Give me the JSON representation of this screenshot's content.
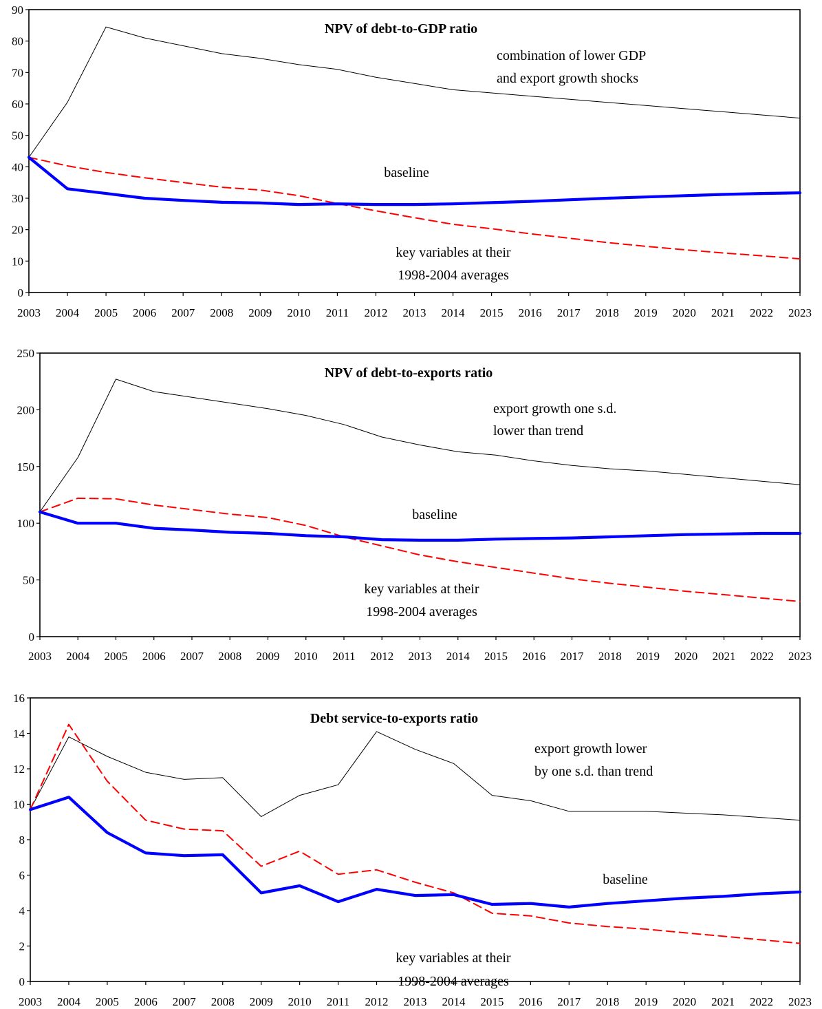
{
  "chart_data": [
    {
      "type": "line",
      "title": "NPV of debt-to-GDP ratio",
      "x": [
        2003,
        2004,
        2005,
        2006,
        2007,
        2008,
        2009,
        2010,
        2011,
        2012,
        2013,
        2014,
        2015,
        2016,
        2017,
        2018,
        2019,
        2020,
        2021,
        2022,
        2023
      ],
      "ylim": [
        0,
        90
      ],
      "yticks": [
        0,
        10,
        20,
        30,
        40,
        50,
        60,
        70,
        80,
        90
      ],
      "grid": false,
      "series": [
        {
          "role": "shock",
          "color": "#000000",
          "style": "thin",
          "values": [
            43,
            60.5,
            84.5,
            81,
            78.5,
            76,
            74.5,
            72.5,
            71,
            68.5,
            66.5,
            64.5,
            63.5,
            62.5,
            61.5,
            60.5,
            59.5,
            58.5,
            57.5,
            56.5,
            55.5
          ]
        },
        {
          "role": "baseline",
          "color": "#0000ff",
          "style": "thick",
          "values": [
            43,
            33,
            31.5,
            30,
            29.3,
            28.7,
            28.5,
            28,
            28.2,
            28,
            28,
            28.2,
            28.6,
            29,
            29.5,
            30,
            30.4,
            30.8,
            31.2,
            31.5,
            31.7
          ]
        },
        {
          "role": "historical",
          "color": "#ff0000",
          "style": "dashed",
          "values": [
            43,
            40.3,
            38.2,
            36.5,
            35,
            33.5,
            32.6,
            30.8,
            28.3,
            26,
            23.8,
            21.7,
            20.3,
            18.7,
            17.3,
            15.9,
            14.7,
            13.6,
            12.6,
            11.7,
            10.7
          ]
        }
      ],
      "annotations": [
        {
          "id": "shock",
          "lines": [
            "combination of lower GDP",
            "and export growth shocks"
          ]
        },
        {
          "id": "baseline",
          "lines": [
            "baseline"
          ]
        },
        {
          "id": "historical",
          "lines": [
            "key variables at their",
            "1998-2004 averages"
          ]
        }
      ]
    },
    {
      "type": "line",
      "title": "NPV of debt-to-exports ratio",
      "x": [
        2003,
        2004,
        2005,
        2006,
        2007,
        2008,
        2009,
        2010,
        2011,
        2012,
        2013,
        2014,
        2015,
        2016,
        2017,
        2018,
        2019,
        2020,
        2021,
        2022,
        2023
      ],
      "ylim": [
        0,
        250
      ],
      "yticks": [
        0,
        50,
        100,
        150,
        200,
        250
      ],
      "grid": false,
      "series": [
        {
          "role": "shock",
          "color": "#000000",
          "style": "thin",
          "values": [
            110,
            158,
            227,
            216,
            211,
            206,
            201,
            195,
            187,
            176,
            169,
            163,
            160,
            155,
            151,
            148,
            146,
            143,
            140,
            137,
            134
          ]
        },
        {
          "role": "baseline",
          "color": "#0000ff",
          "style": "thick",
          "values": [
            110,
            100,
            100,
            95.5,
            94,
            92,
            91,
            89,
            88,
            85.5,
            85,
            85,
            86,
            86.5,
            87,
            88,
            89,
            90,
            90.5,
            91,
            91
          ]
        },
        {
          "role": "historical",
          "color": "#ff0000",
          "style": "dashed",
          "values": [
            110,
            122,
            121.5,
            116,
            112,
            108,
            105,
            98,
            88,
            80,
            72,
            66,
            61,
            56,
            51,
            47,
            43.5,
            40,
            37,
            34,
            31
          ]
        }
      ],
      "annotations": [
        {
          "id": "shock",
          "lines": [
            "export growth one s.d.",
            "lower than trend"
          ]
        },
        {
          "id": "baseline",
          "lines": [
            "baseline"
          ]
        },
        {
          "id": "historical",
          "lines": [
            "key variables at their",
            "1998-2004 averages"
          ]
        }
      ]
    },
    {
      "type": "line",
      "title": "Debt service-to-exports ratio",
      "x": [
        2003,
        2004,
        2005,
        2006,
        2007,
        2008,
        2009,
        2010,
        2011,
        2012,
        2013,
        2014,
        2015,
        2016,
        2017,
        2018,
        2019,
        2020,
        2021,
        2022,
        2023
      ],
      "ylim": [
        0,
        16
      ],
      "yticks": [
        0,
        2,
        4,
        6,
        8,
        10,
        12,
        14,
        16
      ],
      "grid": false,
      "series": [
        {
          "role": "shock",
          "color": "#000000",
          "style": "thin",
          "values": [
            9.7,
            13.8,
            12.7,
            11.8,
            11.4,
            11.5,
            9.3,
            10.5,
            11.1,
            14.1,
            13.1,
            12.3,
            10.5,
            10.2,
            9.6,
            9.6,
            9.6,
            9.5,
            9.4,
            9.25,
            9.1
          ]
        },
        {
          "role": "baseline",
          "color": "#0000ff",
          "style": "thick",
          "values": [
            9.7,
            10.4,
            8.4,
            7.25,
            7.1,
            7.15,
            5,
            5.4,
            4.5,
            5.2,
            4.85,
            4.9,
            4.35,
            4.4,
            4.2,
            4.4,
            4.55,
            4.7,
            4.8,
            4.95,
            5.05
          ]
        },
        {
          "role": "historical",
          "color": "#ff0000",
          "style": "dashed",
          "values": [
            9.7,
            14.5,
            11.3,
            9.1,
            8.6,
            8.5,
            6.5,
            7.35,
            6.05,
            6.3,
            5.6,
            5,
            3.85,
            3.7,
            3.3,
            3.1,
            2.95,
            2.75,
            2.55,
            2.35,
            2.15
          ]
        }
      ],
      "annotations": [
        {
          "id": "shock",
          "lines": [
            "export growth lower",
            "by one s.d. than trend"
          ]
        },
        {
          "id": "baseline",
          "lines": [
            "baseline"
          ]
        },
        {
          "id": "historical",
          "lines": [
            "key variables at their",
            "1998-2004 averages"
          ]
        }
      ]
    }
  ]
}
